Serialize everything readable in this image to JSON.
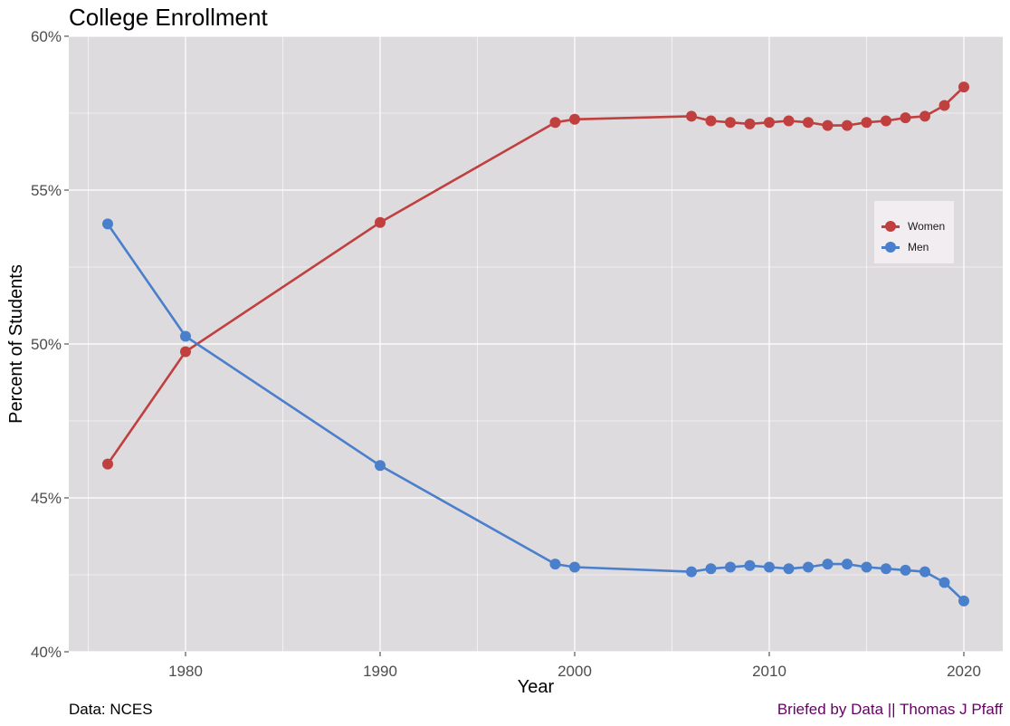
{
  "title": "College Enrollment",
  "caption_left": "Data: NCES",
  "caption_right": "Briefed by Data || Thomas J Pfaff",
  "colors": {
    "panel": "#dedbde",
    "grid": "#ffffff",
    "women": "#c0403f",
    "men": "#4a7fcb",
    "caption_right": "#660066"
  },
  "chart_data": {
    "type": "line",
    "title": "College Enrollment",
    "xlabel": "Year",
    "ylabel": "Percent of Students",
    "xlim": [
      1974,
      2022
    ],
    "ylim": [
      40,
      60
    ],
    "x_ticks": [
      1980,
      1990,
      2000,
      2010,
      2020
    ],
    "y_ticks": [
      40,
      45,
      50,
      55,
      60
    ],
    "y_tick_labels": [
      "40%",
      "45%",
      "50%",
      "55%",
      "60%"
    ],
    "grid": true,
    "legend_position": "right",
    "series": [
      {
        "name": "Women",
        "color": "#c0403f",
        "x": [
          1976,
          1980,
          1990,
          1999,
          2000,
          2006,
          2007,
          2008,
          2009,
          2010,
          2011,
          2012,
          2013,
          2014,
          2015,
          2016,
          2017,
          2018,
          2019,
          2020
        ],
        "y": [
          46.1,
          49.75,
          53.95,
          57.2,
          57.3,
          57.4,
          57.25,
          57.2,
          57.15,
          57.2,
          57.25,
          57.2,
          57.1,
          57.1,
          57.2,
          57.25,
          57.35,
          57.4,
          57.75,
          58.35
        ]
      },
      {
        "name": "Men",
        "color": "#4a7fcb",
        "x": [
          1976,
          1980,
          1990,
          1999,
          2000,
          2006,
          2007,
          2008,
          2009,
          2010,
          2011,
          2012,
          2013,
          2014,
          2015,
          2016,
          2017,
          2018,
          2019,
          2020
        ],
        "y": [
          53.9,
          50.25,
          46.05,
          42.85,
          42.75,
          42.6,
          42.7,
          42.75,
          42.8,
          42.75,
          42.7,
          42.75,
          42.85,
          42.85,
          42.75,
          42.7,
          42.65,
          42.6,
          42.25,
          41.65
        ]
      }
    ]
  }
}
